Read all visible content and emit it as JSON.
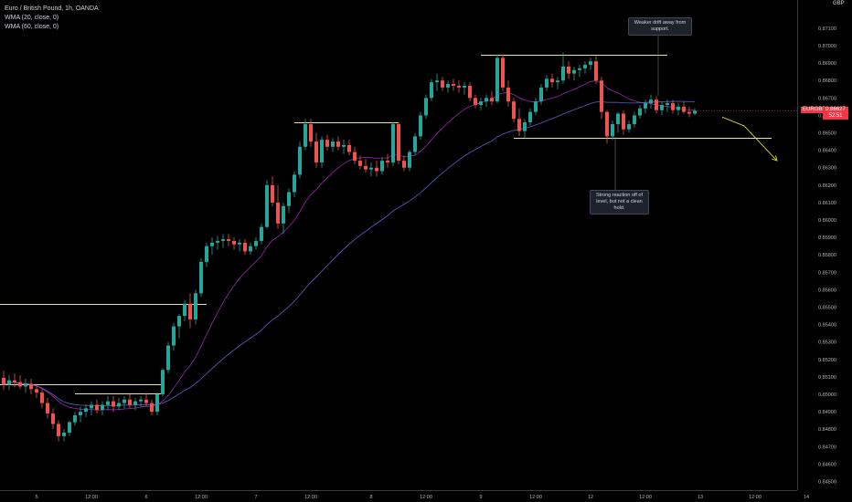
{
  "legend": {
    "title": "Euro / British Pound, 1h, OANDA",
    "wma20": "WMA (20, close, 0)",
    "wma60": "WMA (60, close, 0)"
  },
  "currency": "GBP",
  "price_tag": {
    "symbol": "EURGBP",
    "price": "0.86627",
    "countdown": "52:51"
  },
  "notes": {
    "top": "Weaker drift away from support.",
    "bottom": "Strong reaction off of level, but not a clean hold."
  },
  "colors": {
    "up": "#26a69a",
    "down": "#ef5350",
    "wma20": "#9c27b0",
    "wma60": "#5b5fc7",
    "level": "#e8e4a0",
    "forecast": "#d4d42a",
    "current_price": "#f23645"
  },
  "chart_data": {
    "type": "candlestick",
    "symbol": "EURGBP",
    "interval": "1h",
    "ylim": [
      0.8455,
      0.8722
    ],
    "y_ticks": [
      "0.87100",
      "0.87000",
      "0.86900",
      "0.86800",
      "0.86700",
      "0.86600",
      "0.86500",
      "0.86400",
      "0.86300",
      "0.86200",
      "0.86100",
      "0.86000",
      "0.85900",
      "0.85800",
      "0.85700",
      "0.85600",
      "0.85500",
      "0.85400",
      "0.85300",
      "0.85200",
      "0.85100",
      "0.85000",
      "0.84900",
      "0.84800",
      "0.84700",
      "0.84600",
      "0.84500"
    ],
    "x_ticks": [
      "5",
      "12:00",
      "6",
      "12:00",
      "7",
      "12:00",
      "8",
      "12:00",
      "9",
      "12:00",
      "12",
      "12:00",
      "13",
      "12:00",
      "14"
    ],
    "last_price": 0.86627,
    "candles": [
      [
        0.85095,
        0.85135,
        0.85025,
        0.85055
      ],
      [
        0.85055,
        0.8511,
        0.85025,
        0.8508
      ],
      [
        0.8508,
        0.8512,
        0.8504,
        0.8507
      ],
      [
        0.8507,
        0.8511,
        0.8503,
        0.85045
      ],
      [
        0.85045,
        0.8509,
        0.8501,
        0.8506
      ],
      [
        0.8506,
        0.8509,
        0.85,
        0.8503
      ],
      [
        0.8503,
        0.8506,
        0.8498,
        0.8501
      ],
      [
        0.8501,
        0.8503,
        0.8492,
        0.8495
      ],
      [
        0.8495,
        0.8498,
        0.8486,
        0.8489
      ],
      [
        0.8489,
        0.8492,
        0.848,
        0.8483
      ],
      [
        0.8483,
        0.8485,
        0.8473,
        0.8476
      ],
      [
        0.8476,
        0.848,
        0.8473,
        0.8478
      ],
      [
        0.8478,
        0.8485,
        0.8476,
        0.8484
      ],
      [
        0.8484,
        0.849,
        0.8482,
        0.8488
      ],
      [
        0.8488,
        0.8493,
        0.8484,
        0.849
      ],
      [
        0.849,
        0.8494,
        0.8487,
        0.8492
      ],
      [
        0.8492,
        0.8496,
        0.8488,
        0.8494
      ],
      [
        0.8494,
        0.8497,
        0.8489,
        0.8491
      ],
      [
        0.8491,
        0.8496,
        0.8488,
        0.8494
      ],
      [
        0.8494,
        0.8499,
        0.8491,
        0.8496
      ],
      [
        0.8496,
        0.8499,
        0.849,
        0.8493
      ],
      [
        0.8493,
        0.8498,
        0.8491,
        0.8495
      ],
      [
        0.8495,
        0.8499,
        0.8492,
        0.8497
      ],
      [
        0.8497,
        0.85,
        0.8492,
        0.8494
      ],
      [
        0.8494,
        0.8498,
        0.8491,
        0.8496
      ],
      [
        0.8496,
        0.8499,
        0.8493,
        0.8497
      ],
      [
        0.8497,
        0.8501,
        0.8493,
        0.8495
      ],
      [
        0.8495,
        0.8497,
        0.8488,
        0.849
      ],
      [
        0.849,
        0.8501,
        0.8488,
        0.85
      ],
      [
        0.85,
        0.8515,
        0.8499,
        0.8514
      ],
      [
        0.8514,
        0.853,
        0.8512,
        0.8528
      ],
      [
        0.8528,
        0.8541,
        0.8525,
        0.8539
      ],
      [
        0.8539,
        0.8546,
        0.8532,
        0.8545
      ],
      [
        0.8545,
        0.8554,
        0.8542,
        0.8552
      ],
      [
        0.8552,
        0.8558,
        0.8538,
        0.8543
      ],
      [
        0.8543,
        0.856,
        0.854,
        0.8558
      ],
      [
        0.8558,
        0.8578,
        0.8556,
        0.8576
      ],
      [
        0.8576,
        0.8587,
        0.8573,
        0.8585
      ],
      [
        0.8585,
        0.859,
        0.858,
        0.8587
      ],
      [
        0.8587,
        0.8591,
        0.8583,
        0.8588
      ],
      [
        0.8588,
        0.8592,
        0.8584,
        0.8589
      ],
      [
        0.8589,
        0.8592,
        0.8585,
        0.8588
      ],
      [
        0.8588,
        0.859,
        0.8583,
        0.8586
      ],
      [
        0.8586,
        0.8589,
        0.8582,
        0.8587
      ],
      [
        0.8587,
        0.8589,
        0.858,
        0.8582
      ],
      [
        0.8582,
        0.8587,
        0.858,
        0.8585
      ],
      [
        0.8585,
        0.859,
        0.8583,
        0.8588
      ],
      [
        0.8588,
        0.8598,
        0.8586,
        0.8596
      ],
      [
        0.8596,
        0.8623,
        0.8595,
        0.862
      ],
      [
        0.862,
        0.8625,
        0.8608,
        0.861
      ],
      [
        0.861,
        0.862,
        0.8595,
        0.8598
      ],
      [
        0.8598,
        0.861,
        0.8592,
        0.8608
      ],
      [
        0.8608,
        0.8618,
        0.8604,
        0.8616
      ],
      [
        0.8616,
        0.8628,
        0.8613,
        0.8626
      ],
      [
        0.8626,
        0.8645,
        0.8624,
        0.8642
      ],
      [
        0.8642,
        0.8658,
        0.864,
        0.8655
      ],
      [
        0.8655,
        0.8658,
        0.8642,
        0.8645
      ],
      [
        0.8645,
        0.865,
        0.863,
        0.8633
      ],
      [
        0.8633,
        0.8648,
        0.863,
        0.8646
      ],
      [
        0.8646,
        0.8649,
        0.864,
        0.8642
      ],
      [
        0.8642,
        0.8647,
        0.8639,
        0.8645
      ],
      [
        0.8645,
        0.8648,
        0.864,
        0.8642
      ],
      [
        0.8642,
        0.8646,
        0.8638,
        0.8643
      ],
      [
        0.8643,
        0.8646,
        0.8637,
        0.8639
      ],
      [
        0.8639,
        0.8642,
        0.8632,
        0.8634
      ],
      [
        0.8634,
        0.8637,
        0.8629,
        0.8631
      ],
      [
        0.8631,
        0.8635,
        0.8627,
        0.8629
      ],
      [
        0.8629,
        0.8633,
        0.8625,
        0.863
      ],
      [
        0.863,
        0.8634,
        0.8625,
        0.8628
      ],
      [
        0.8628,
        0.8636,
        0.8626,
        0.8634
      ],
      [
        0.8634,
        0.8638,
        0.863,
        0.8633
      ],
      [
        0.8633,
        0.8656,
        0.8631,
        0.8655
      ],
      [
        0.8655,
        0.8656,
        0.8632,
        0.8634
      ],
      [
        0.8634,
        0.8637,
        0.8628,
        0.863
      ],
      [
        0.863,
        0.864,
        0.8628,
        0.8639
      ],
      [
        0.8639,
        0.865,
        0.8637,
        0.8648
      ],
      [
        0.8648,
        0.8662,
        0.8646,
        0.866
      ],
      [
        0.866,
        0.8672,
        0.8658,
        0.867
      ],
      [
        0.867,
        0.8681,
        0.8668,
        0.8679
      ],
      [
        0.8679,
        0.8684,
        0.8674,
        0.868
      ],
      [
        0.868,
        0.8682,
        0.8674,
        0.8676
      ],
      [
        0.8676,
        0.868,
        0.8673,
        0.8678
      ],
      [
        0.8678,
        0.8681,
        0.8674,
        0.8677
      ],
      [
        0.8677,
        0.868,
        0.8673,
        0.8676
      ],
      [
        0.8676,
        0.8679,
        0.8672,
        0.8677
      ],
      [
        0.8677,
        0.8679,
        0.8668,
        0.867
      ],
      [
        0.867,
        0.8672,
        0.8664,
        0.8666
      ],
      [
        0.8666,
        0.867,
        0.8663,
        0.8668
      ],
      [
        0.8668,
        0.8672,
        0.8665,
        0.867
      ],
      [
        0.867,
        0.8674,
        0.8666,
        0.8668
      ],
      [
        0.8668,
        0.8695,
        0.8667,
        0.8693
      ],
      [
        0.8693,
        0.8695,
        0.8674,
        0.8676
      ],
      [
        0.8676,
        0.868,
        0.8665,
        0.8668
      ],
      [
        0.8668,
        0.867,
        0.8656,
        0.8658
      ],
      [
        0.8658,
        0.8664,
        0.8648,
        0.8651
      ],
      [
        0.8651,
        0.8658,
        0.8647,
        0.8656
      ],
      [
        0.8656,
        0.8664,
        0.8654,
        0.8662
      ],
      [
        0.8662,
        0.867,
        0.866,
        0.8668
      ],
      [
        0.8668,
        0.8678,
        0.8666,
        0.8676
      ],
      [
        0.8676,
        0.8683,
        0.8674,
        0.8681
      ],
      [
        0.8681,
        0.8684,
        0.8676,
        0.8679
      ],
      [
        0.8679,
        0.8682,
        0.8675,
        0.868
      ],
      [
        0.868,
        0.8696,
        0.8678,
        0.8688
      ],
      [
        0.8688,
        0.8691,
        0.8681,
        0.8684
      ],
      [
        0.8684,
        0.8688,
        0.868,
        0.8686
      ],
      [
        0.8686,
        0.8689,
        0.8682,
        0.8687
      ],
      [
        0.8687,
        0.8691,
        0.8684,
        0.8689
      ],
      [
        0.8689,
        0.8693,
        0.8686,
        0.8691
      ],
      [
        0.8691,
        0.8694,
        0.8678,
        0.868
      ],
      [
        0.868,
        0.8682,
        0.8658,
        0.8662
      ],
      [
        0.8662,
        0.8663,
        0.8644,
        0.8648
      ],
      [
        0.8648,
        0.8657,
        0.8646,
        0.8655
      ],
      [
        0.8655,
        0.8662,
        0.865,
        0.8661
      ],
      [
        0.8661,
        0.8663,
        0.8649,
        0.8652
      ],
      [
        0.8652,
        0.8657,
        0.865,
        0.8655
      ],
      [
        0.8655,
        0.8662,
        0.8653,
        0.866
      ],
      [
        0.866,
        0.8666,
        0.8658,
        0.8664
      ],
      [
        0.8664,
        0.8669,
        0.8661,
        0.8667
      ],
      [
        0.8667,
        0.8672,
        0.8664,
        0.8669
      ],
      [
        0.8669,
        0.8671,
        0.8661,
        0.8663
      ],
      [
        0.8663,
        0.8668,
        0.866,
        0.8666
      ],
      [
        0.8666,
        0.8669,
        0.8662,
        0.8667
      ],
      [
        0.8667,
        0.8669,
        0.8661,
        0.8663
      ],
      [
        0.8663,
        0.8667,
        0.866,
        0.8665
      ],
      [
        0.8665,
        0.8668,
        0.8661,
        0.8662
      ],
      [
        0.8662,
        0.8665,
        0.8659,
        0.8661
      ],
      [
        0.8661,
        0.8664,
        0.866,
        0.86627
      ]
    ],
    "levels": [
      {
        "price": 0.8552,
        "from_bar": 0,
        "to_bar": 37
      },
      {
        "price": 0.8506,
        "from_bar": 0,
        "to_bar": 29
      },
      {
        "price": 0.85005,
        "from_bar": 13,
        "to_bar": 29
      },
      {
        "price": 0.8656,
        "from_bar": 53,
        "to_bar": 72
      },
      {
        "price": 0.8695,
        "from_bar": 87,
        "to_bar": 121
      },
      {
        "price": 0.8647,
        "from_bar": 93,
        "to_bar": 140
      }
    ],
    "forecast": [
      {
        "bar": 131,
        "price": 0.8659
      },
      {
        "bar": 135,
        "price": 0.8654
      },
      {
        "bar": 141,
        "price": 0.8634
      }
    ]
  }
}
